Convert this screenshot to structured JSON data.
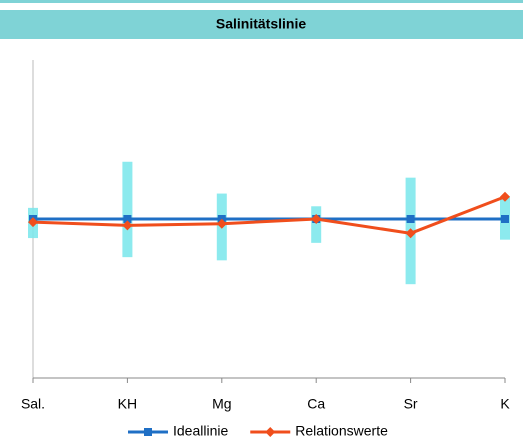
{
  "chart_data": {
    "type": "line",
    "title": "Salinitätslinie",
    "categories": [
      "Sal.",
      "KH",
      "Mg",
      "Ca",
      "Sr",
      "K"
    ],
    "series": [
      {
        "name": "Ideallinie",
        "color": "#1f6fc5",
        "marker": "square",
        "values": [
          1,
          1,
          1,
          1,
          1,
          1
        ]
      },
      {
        "name": "Relationswerte",
        "color": "#f04e1c",
        "marker": "diamond",
        "values": [
          0.98,
          0.96,
          0.97,
          1.0,
          0.91,
          1.14
        ]
      }
    ],
    "ranges": {
      "color": "#7fe8ec",
      "low": [
        0.88,
        0.76,
        0.74,
        0.85,
        0.59,
        0.87
      ],
      "high": [
        1.07,
        1.36,
        1.16,
        1.08,
        1.26,
        1.14
      ]
    },
    "ylim": [
      0,
      2
    ],
    "legend": "bottom"
  }
}
